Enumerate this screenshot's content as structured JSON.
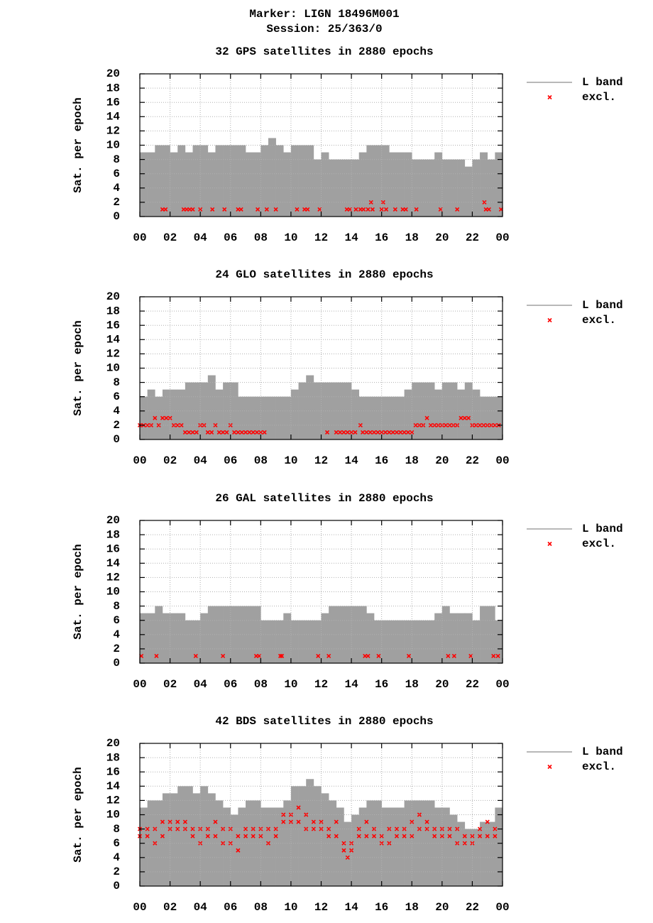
{
  "header": {
    "marker": "Marker: LIGN 18496M001",
    "session": "Session: 25/363/0"
  },
  "chart_data": [
    {
      "type": "area",
      "title": "32 GPS satellites in 2880 epochs",
      "ylabel": "Sat. per epoch",
      "xlim": [
        0,
        24
      ],
      "xticks": [
        {
          "value": 0,
          "label": "00"
        },
        {
          "value": 2,
          "label": "02"
        },
        {
          "value": 4,
          "label": "04"
        },
        {
          "value": 6,
          "label": "06"
        },
        {
          "value": 8,
          "label": "08"
        },
        10,
        12,
        14,
        16,
        18,
        20,
        22,
        {
          "value": 24,
          "label": "00"
        }
      ],
      "ylim": [
        0,
        20
      ],
      "yticks": [
        0,
        2,
        4,
        6,
        8,
        10,
        12,
        14,
        16,
        18,
        20
      ],
      "grid": true,
      "legend": "right",
      "series": [
        {
          "name": "L band",
          "color": "#a0a0a0",
          "x": [
            0,
            0.5,
            1,
            1.5,
            2,
            2.5,
            3,
            3.5,
            4,
            4.5,
            5,
            5.5,
            6,
            6.5,
            7,
            7.5,
            8,
            8.5,
            9,
            9.5,
            10,
            10.5,
            11,
            11.5,
            12,
            12.5,
            13,
            13.5,
            14,
            14.5,
            15,
            15.5,
            16,
            16.5,
            17,
            17.5,
            18,
            18.5,
            19,
            19.5,
            20,
            20.5,
            21,
            21.5,
            22,
            22.5,
            23,
            23.5
          ],
          "values": [
            9,
            9,
            10,
            10,
            9,
            10,
            9,
            10,
            10,
            9,
            10,
            10,
            10,
            10,
            9,
            9,
            10,
            11,
            10,
            9,
            10,
            10,
            10,
            8,
            9,
            8,
            8,
            8,
            8,
            9,
            10,
            10,
            10,
            9,
            9,
            9,
            8,
            8,
            8,
            9,
            8,
            8,
            8,
            7,
            8,
            9,
            8,
            9
          ]
        },
        {
          "name": "excl.",
          "color": "#ff0000",
          "x": [
            1.5,
            1.7,
            2.9,
            3.1,
            3.3,
            3.5,
            4.0,
            4.8,
            5.6,
            6.5,
            6.7,
            7.8,
            8.4,
            9.0,
            10.4,
            10.9,
            11.1,
            11.9,
            13.7,
            13.9,
            14.3,
            14.6,
            14.8,
            15.1,
            15.3,
            15.4,
            16.0,
            16.1,
            16.3,
            16.9,
            17.4,
            17.6,
            18.3,
            19.9,
            21.0,
            22.8,
            22.9,
            23.1,
            23.9
          ],
          "values": [
            1,
            1,
            1,
            1,
            1,
            1,
            1,
            1,
            1,
            1,
            1,
            1,
            1,
            1,
            1,
            1,
            1,
            1,
            1,
            1,
            1,
            1,
            1,
            1,
            2,
            1,
            1,
            2,
            1,
            1,
            1,
            1,
            1,
            1,
            1,
            2,
            1,
            1,
            1
          ]
        }
      ]
    },
    {
      "type": "area",
      "title": "24 GLO satellites in 2880 epochs",
      "ylabel": "Sat. per epoch",
      "xlim": [
        0,
        24
      ],
      "xticks": [
        {
          "value": 0,
          "label": "00"
        },
        {
          "value": 2,
          "label": "02"
        },
        {
          "value": 4,
          "label": "04"
        },
        {
          "value": 6,
          "label": "06"
        },
        {
          "value": 8,
          "label": "08"
        },
        10,
        12,
        14,
        16,
        18,
        20,
        22,
        {
          "value": 24,
          "label": "00"
        }
      ],
      "ylim": [
        0,
        20
      ],
      "yticks": [
        0,
        2,
        4,
        6,
        8,
        10,
        12,
        14,
        16,
        18,
        20
      ],
      "grid": true,
      "legend": "right",
      "series": [
        {
          "name": "L band",
          "color": "#a0a0a0",
          "x": [
            0,
            0.5,
            1,
            1.5,
            2,
            2.5,
            3,
            3.5,
            4,
            4.5,
            5,
            5.5,
            6,
            6.5,
            7,
            7.5,
            8,
            8.5,
            9,
            9.5,
            10,
            10.5,
            11,
            11.5,
            12,
            12.5,
            13,
            13.5,
            14,
            14.5,
            15,
            15.5,
            16,
            16.5,
            17,
            17.5,
            18,
            18.5,
            19,
            19.5,
            20,
            20.5,
            21,
            21.5,
            22,
            22.5,
            23,
            23.5
          ],
          "values": [
            6,
            7,
            6,
            7,
            7,
            7,
            8,
            8,
            8,
            9,
            7,
            8,
            8,
            6,
            6,
            6,
            6,
            6,
            6,
            6,
            7,
            8,
            9,
            8,
            8,
            8,
            8,
            8,
            7,
            6,
            6,
            6,
            6,
            6,
            6,
            7,
            8,
            8,
            8,
            7,
            8,
            8,
            7,
            8,
            7,
            6,
            6,
            6
          ]
        },
        {
          "name": "excl.",
          "color": "#ff0000",
          "x": [
            0,
            0.25,
            0.5,
            0.75,
            1.0,
            1.25,
            1.5,
            1.75,
            2.0,
            2.25,
            2.5,
            2.75,
            3.0,
            3.25,
            3.5,
            3.75,
            4.0,
            4.25,
            4.5,
            4.75,
            5.0,
            5.25,
            5.5,
            5.75,
            6.0,
            6.25,
            6.5,
            6.75,
            7.0,
            7.25,
            7.5,
            7.75,
            8.0,
            8.25,
            12.4,
            13.0,
            13.25,
            13.5,
            13.75,
            14.0,
            14.25,
            14.6,
            14.75,
            15.0,
            15.25,
            15.5,
            15.75,
            16.0,
            16.25,
            16.5,
            16.75,
            17.0,
            17.25,
            17.5,
            17.75,
            18.0,
            18.25,
            18.5,
            18.75,
            19.0,
            19.25,
            19.5,
            19.75,
            20.0,
            20.25,
            20.5,
            20.75,
            21.0,
            21.25,
            21.5,
            21.75,
            22.0,
            22.25,
            22.5,
            22.75,
            23.0,
            23.25,
            23.5,
            23.75
          ],
          "values": [
            2,
            2,
            2,
            2,
            3,
            2,
            3,
            3,
            3,
            2,
            2,
            2,
            1,
            1,
            1,
            1,
            2,
            2,
            1,
            1,
            2,
            1,
            1,
            1,
            2,
            1,
            1,
            1,
            1,
            1,
            1,
            1,
            1,
            1,
            1,
            1,
            1,
            1,
            1,
            1,
            1,
            2,
            1,
            1,
            1,
            1,
            1,
            1,
            1,
            1,
            1,
            1,
            1,
            1,
            1,
            1,
            2,
            2,
            2,
            3,
            2,
            2,
            2,
            2,
            2,
            2,
            2,
            2,
            3,
            3,
            3,
            2,
            2,
            2,
            2,
            2,
            2,
            2,
            2
          ]
        }
      ]
    },
    {
      "type": "area",
      "title": "26 GAL satellites in 2880 epochs",
      "ylabel": "Sat. per epoch",
      "xlim": [
        0,
        24
      ],
      "xticks": [
        {
          "value": 0,
          "label": "00"
        },
        {
          "value": 2,
          "label": "02"
        },
        {
          "value": 4,
          "label": "04"
        },
        {
          "value": 6,
          "label": "06"
        },
        {
          "value": 8,
          "label": "08"
        },
        10,
        12,
        14,
        16,
        18,
        20,
        22,
        {
          "value": 24,
          "label": "00"
        }
      ],
      "ylim": [
        0,
        20
      ],
      "yticks": [
        0,
        2,
        4,
        6,
        8,
        10,
        12,
        14,
        16,
        18,
        20
      ],
      "grid": true,
      "legend": "right",
      "series": [
        {
          "name": "L band",
          "color": "#a0a0a0",
          "x": [
            0,
            0.5,
            1,
            1.5,
            2,
            2.5,
            3,
            3.5,
            4,
            4.5,
            5,
            5.5,
            6,
            6.5,
            7,
            7.5,
            8,
            8.5,
            9,
            9.5,
            10,
            10.5,
            11,
            11.5,
            12,
            12.5,
            13,
            13.5,
            14,
            14.5,
            15,
            15.5,
            16,
            16.5,
            17,
            17.5,
            18,
            18.5,
            19,
            19.5,
            20,
            20.5,
            21,
            21.5,
            22,
            22.5,
            23,
            23.5
          ],
          "values": [
            7,
            7,
            8,
            7,
            7,
            7,
            6,
            6,
            7,
            8,
            8,
            8,
            8,
            8,
            8,
            8,
            6,
            6,
            6,
            7,
            6,
            6,
            6,
            6,
            7,
            8,
            8,
            8,
            8,
            8,
            7,
            6,
            6,
            6,
            6,
            6,
            6,
            6,
            6,
            7,
            8,
            7,
            7,
            7,
            6,
            8,
            8,
            6
          ]
        },
        {
          "name": "excl.",
          "color": "#ff0000",
          "x": [
            0.1,
            1.1,
            3.7,
            5.5,
            7.7,
            7.9,
            9.3,
            9.4,
            11.8,
            12.5,
            14.9,
            15.1,
            15.8,
            17.8,
            20.4,
            20.8,
            21.9,
            23.4,
            23.7
          ],
          "values": [
            1,
            1,
            1,
            1,
            1,
            1,
            1,
            1,
            1,
            1,
            1,
            1,
            1,
            1,
            1,
            1,
            1,
            1,
            1
          ]
        }
      ]
    },
    {
      "type": "area",
      "title": "42 BDS satellites in 2880 epochs",
      "ylabel": "Sat. per epoch",
      "xlim": [
        0,
        24
      ],
      "xticks": [
        {
          "value": 0,
          "label": "00"
        },
        {
          "value": 2,
          "label": "02"
        },
        {
          "value": 4,
          "label": "04"
        },
        {
          "value": 6,
          "label": "06"
        },
        {
          "value": 8,
          "label": "08"
        },
        10,
        12,
        14,
        16,
        18,
        20,
        22,
        {
          "value": 24,
          "label": "00"
        }
      ],
      "ylim": [
        0,
        20
      ],
      "yticks": [
        0,
        2,
        4,
        6,
        8,
        10,
        12,
        14,
        16,
        18,
        20
      ],
      "grid": true,
      "legend": "right",
      "series": [
        {
          "name": "L band",
          "color": "#a0a0a0",
          "x": [
            0,
            0.5,
            1,
            1.5,
            2,
            2.5,
            3,
            3.5,
            4,
            4.5,
            5,
            5.5,
            6,
            6.5,
            7,
            7.5,
            8,
            8.5,
            9,
            9.5,
            10,
            10.5,
            11,
            11.5,
            12,
            12.5,
            13,
            13.5,
            14,
            14.5,
            15,
            15.5,
            16,
            16.5,
            17,
            17.5,
            18,
            18.5,
            19,
            19.5,
            20,
            20.5,
            21,
            21.5,
            22,
            22.5,
            23,
            23.5
          ],
          "values": [
            11,
            12,
            12,
            13,
            13,
            14,
            14,
            13,
            14,
            13,
            12,
            11,
            10,
            11,
            12,
            12,
            11,
            11,
            11,
            12,
            14,
            14,
            15,
            14,
            13,
            12,
            11,
            9,
            10,
            11,
            12,
            12,
            11,
            11,
            11,
            12,
            12,
            12,
            12,
            11,
            11,
            10,
            9,
            8,
            8,
            9,
            9,
            11
          ]
        },
        {
          "name": "excl.",
          "color": "#ff0000",
          "x": [
            0,
            0,
            0.5,
            0.5,
            1,
            1,
            1.5,
            1.5,
            2,
            2,
            2.5,
            2.5,
            3,
            3,
            3.5,
            3.5,
            4,
            4,
            4.5,
            4.5,
            5,
            5,
            5.5,
            5.5,
            6,
            6,
            6.5,
            6.5,
            7,
            7,
            7.5,
            7.5,
            8,
            8,
            8.5,
            8.5,
            9,
            9,
            9.5,
            9.5,
            10,
            10,
            10.5,
            10.5,
            11,
            11,
            11.5,
            11.5,
            12,
            12,
            12.5,
            12.5,
            13,
            13,
            13.5,
            13.5,
            13.75,
            14,
            14,
            14.5,
            14.5,
            15,
            15,
            15.5,
            15.5,
            16,
            16,
            16.5,
            16.5,
            17,
            17,
            17.5,
            17.5,
            18,
            18,
            18.5,
            18.5,
            19,
            19,
            19.5,
            19.5,
            20,
            20,
            20.5,
            20.5,
            21,
            21,
            21.5,
            21.5,
            22,
            22,
            22.5,
            22.5,
            23,
            23,
            23.5,
            23.5
          ],
          "values": [
            7,
            8,
            7,
            8,
            6,
            8,
            7,
            9,
            8,
            9,
            8,
            9,
            8,
            9,
            7,
            8,
            6,
            8,
            7,
            8,
            7,
            9,
            6,
            8,
            6,
            8,
            5,
            7,
            7,
            8,
            7,
            8,
            7,
            8,
            6,
            8,
            7,
            8,
            9,
            10,
            9,
            10,
            9,
            11,
            8,
            10,
            8,
            9,
            8,
            9,
            7,
            8,
            7,
            9,
            5,
            6,
            4,
            5,
            6,
            7,
            8,
            7,
            9,
            7,
            8,
            6,
            7,
            6,
            8,
            7,
            8,
            7,
            8,
            7,
            9,
            8,
            10,
            8,
            9,
            7,
            8,
            7,
            8,
            7,
            8,
            6,
            8,
            6,
            7,
            6,
            7,
            7,
            8,
            7,
            9,
            7,
            8
          ]
        }
      ]
    }
  ]
}
